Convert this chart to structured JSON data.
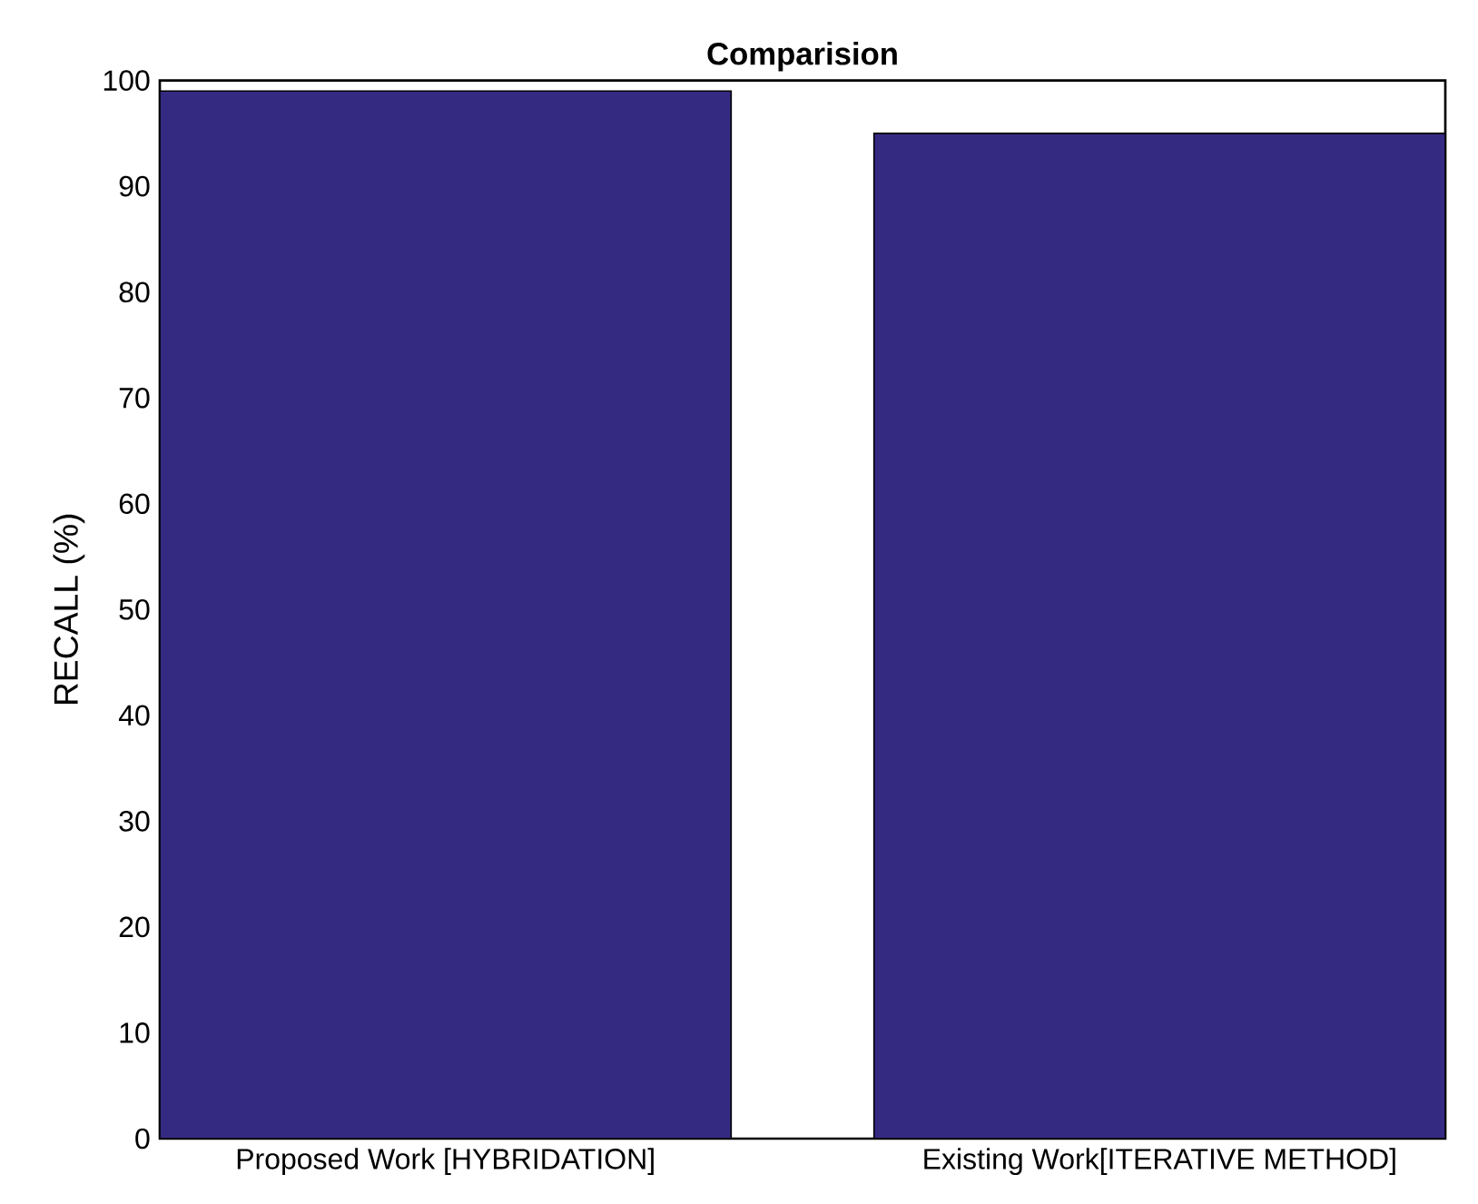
{
  "chart_data": {
    "type": "bar",
    "title": "Comparision",
    "ylabel": "RECALL (%)",
    "categories": [
      "Proposed Work [HYBRIDATION]",
      "Existing Work[ITERATIVE METHOD]"
    ],
    "values": [
      99,
      95
    ],
    "color": "#352a82",
    "ylim": [
      0,
      100
    ],
    "yticks": [
      0,
      10,
      20,
      30,
      40,
      50,
      60,
      70,
      80,
      90,
      100
    ],
    "grid": false
  }
}
